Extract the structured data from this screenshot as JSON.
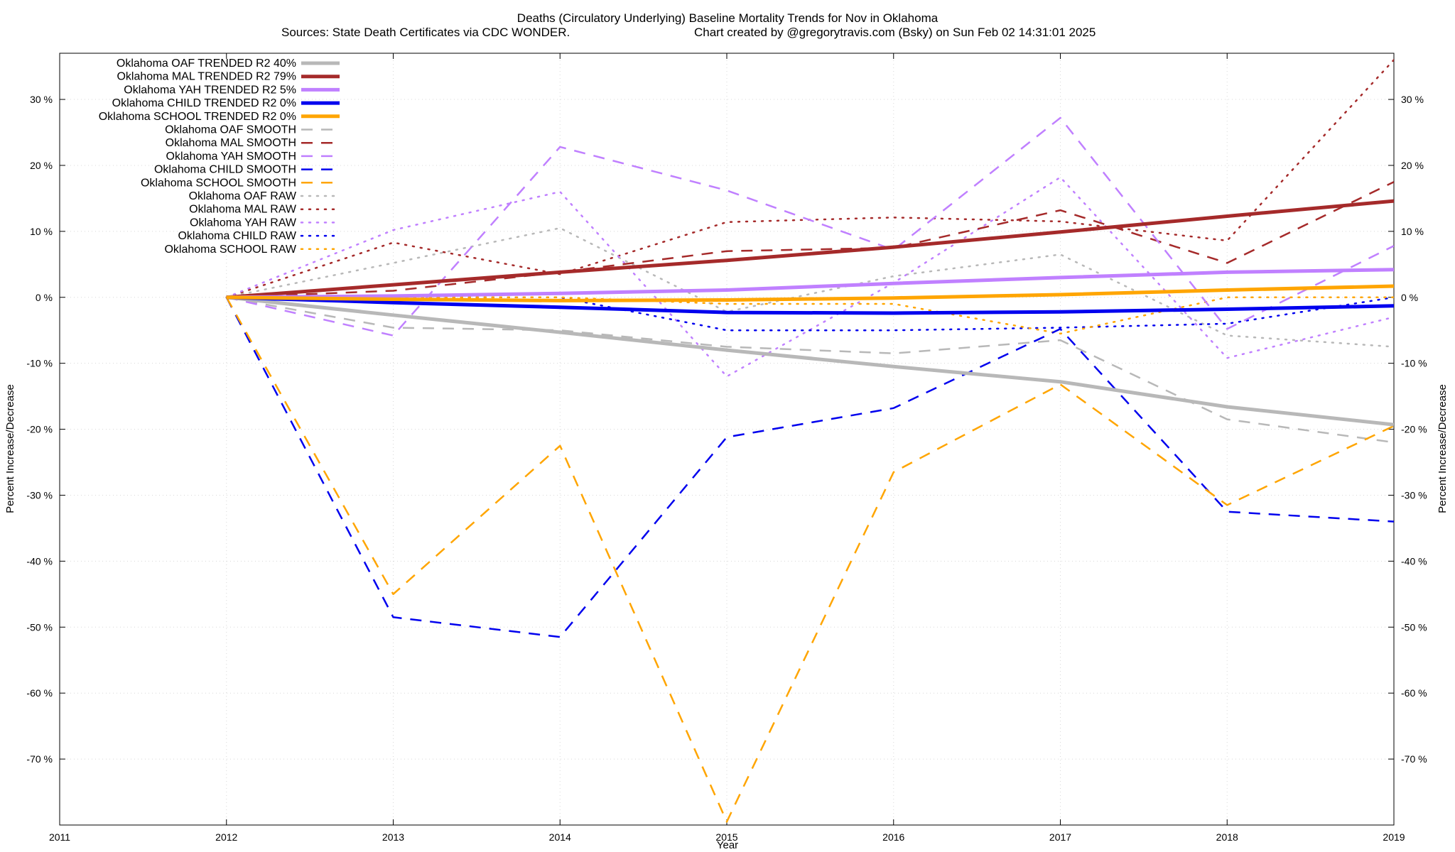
{
  "chart_data": {
    "type": "line",
    "title": "Deaths (Circulatory Underlying)  Baseline Mortality Trends for Nov in Oklahoma",
    "subtitle_left": "Sources: State Death Certificates via CDC WONDER.",
    "subtitle_right": "Chart created by @gregorytravis.com (Bsky) on Sun Feb 02 14:31:01 2025",
    "xlabel": "Year",
    "ylabel": "Percent Increase/Decrease",
    "ylabel_right": "Percent Increase/Decrease",
    "xlim": [
      2011,
      2019
    ],
    "ylim": [
      -80,
      37
    ],
    "x_ticks": [
      2011,
      2012,
      2013,
      2014,
      2015,
      2016,
      2017,
      2018,
      2019
    ],
    "y_ticks": [
      -70,
      -60,
      -50,
      -40,
      -30,
      -20,
      -10,
      0,
      10,
      20,
      30
    ],
    "y_tick_labels": [
      "-70 %",
      "-60 %",
      "-50 %",
      "-40 %",
      "-30 %",
      "-20 %",
      "-10 %",
      "0 %",
      "10 %",
      "20 %",
      "30 %"
    ],
    "grid": true,
    "legend_position": "top-left",
    "x": [
      2012,
      2013,
      2014,
      2015,
      2016,
      2017,
      2018,
      2019
    ],
    "series": [
      {
        "name": "Oklahoma OAF TRENDED R2  40%",
        "style": "solid",
        "color": "#b8b8b8",
        "values": [
          0,
          -2.7,
          -5.3,
          -8.0,
          -10.5,
          -12.8,
          -16.6,
          -19.3
        ]
      },
      {
        "name": "Oklahoma MAL TRENDED R2  79%",
        "style": "solid",
        "color": "#a52a2a",
        "values": [
          0,
          1.9,
          3.8,
          5.6,
          7.6,
          9.9,
          12.3,
          14.6
        ]
      },
      {
        "name": "Oklahoma YAH TRENDED R2   5%",
        "style": "solid",
        "color": "#c080ff",
        "values": [
          0,
          0.2,
          0.6,
          1.1,
          2.1,
          3.0,
          3.8,
          4.2
        ]
      },
      {
        "name": "Oklahoma CHILD TRENDED R2   0%",
        "style": "solid",
        "color": "#0000ee",
        "values": [
          0,
          -0.8,
          -1.5,
          -2.3,
          -2.4,
          -2.2,
          -1.8,
          -1.3
        ]
      },
      {
        "name": "Oklahoma SCHOOL TRENDED R2   0%",
        "style": "solid",
        "color": "#ffa500",
        "values": [
          0,
          -0.3,
          -0.5,
          -0.4,
          -0.1,
          0.4,
          1.1,
          1.7
        ]
      },
      {
        "name": "Oklahoma OAF SMOOTH",
        "style": "dashed",
        "color": "#b8b8b8",
        "values": [
          0,
          -4.6,
          -5.0,
          -7.5,
          -8.5,
          -6.5,
          -18.5,
          -22.0
        ]
      },
      {
        "name": "Oklahoma MAL SMOOTH",
        "style": "dashed",
        "color": "#a52a2a",
        "values": [
          0,
          1.0,
          3.8,
          7.0,
          7.5,
          13.2,
          5.2,
          17.5
        ]
      },
      {
        "name": "Oklahoma YAH SMOOTH",
        "style": "dashed",
        "color": "#c080ff",
        "values": [
          0,
          -5.8,
          22.8,
          16.2,
          7.2,
          27.2,
          -4.8,
          7.8
        ]
      },
      {
        "name": "Oklahoma CHILD SMOOTH",
        "style": "dashed",
        "color": "#0000ee",
        "values": [
          0,
          -48.5,
          -51.5,
          -21.2,
          -16.8,
          -4.8,
          -32.5,
          -34.0
        ]
      },
      {
        "name": "Oklahoma SCHOOL SMOOTH",
        "style": "dashed",
        "color": "#ffa500",
        "values": [
          0,
          -45.0,
          -22.5,
          -79.5,
          -26.5,
          -13.2,
          -31.5,
          -19.5
        ]
      },
      {
        "name": "Oklahoma OAF RAW",
        "style": "dotted",
        "color": "#b8b8b8",
        "values": [
          0,
          5.2,
          10.5,
          -2.2,
          3.2,
          6.5,
          -5.8,
          -7.5
        ]
      },
      {
        "name": "Oklahoma MAL RAW",
        "style": "dotted",
        "color": "#a52a2a",
        "values": [
          0,
          8.3,
          3.5,
          11.4,
          12.1,
          11.5,
          8.6,
          36.0
        ]
      },
      {
        "name": "Oklahoma YAH RAW",
        "style": "dotted",
        "color": "#c080ff",
        "values": [
          0,
          10.2,
          16.0,
          -12.0,
          2.2,
          18.2,
          -9.2,
          -3.0
        ]
      },
      {
        "name": "Oklahoma CHILD RAW",
        "style": "dotted",
        "color": "#0000ee",
        "values": [
          0,
          0,
          0,
          -5.0,
          -5.0,
          -4.6,
          -4.0,
          0
        ]
      },
      {
        "name": "Oklahoma SCHOOL RAW",
        "style": "dotted",
        "color": "#ffa500",
        "values": [
          0,
          0,
          0,
          -1.0,
          -1.0,
          -5.5,
          0,
          0
        ]
      }
    ]
  }
}
